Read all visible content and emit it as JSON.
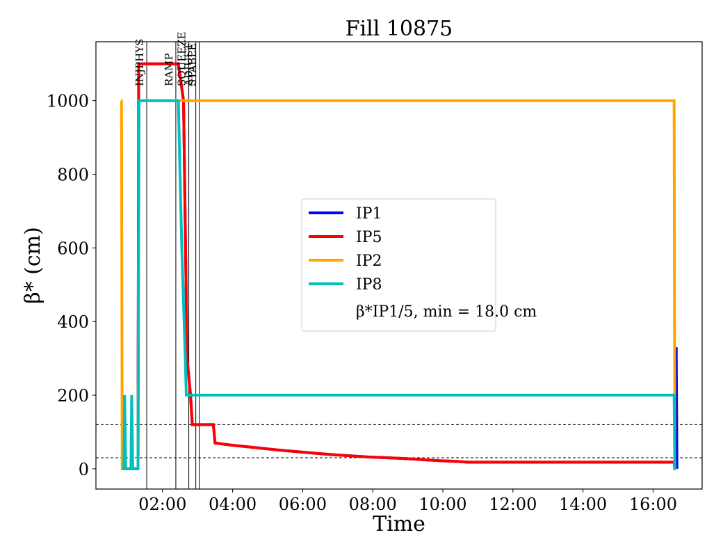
{
  "chart_data": {
    "type": "line",
    "title": "Fill 10875",
    "xlabel": "Time",
    "ylabel": "β* (cm)",
    "x_unit": "hours",
    "xlim": [
      0.1,
      17.4
    ],
    "ylim": [
      -55,
      1160
    ],
    "grid": false,
    "x_ticks": [
      {
        "value": 2,
        "label": "02:00"
      },
      {
        "value": 4,
        "label": "04:00"
      },
      {
        "value": 6,
        "label": "06:00"
      },
      {
        "value": 8,
        "label": "08:00"
      },
      {
        "value": 10,
        "label": "10:00"
      },
      {
        "value": 12,
        "label": "12:00"
      },
      {
        "value": 14,
        "label": "14:00"
      },
      {
        "value": 16,
        "label": "16:00"
      }
    ],
    "y_ticks": [
      0,
      200,
      400,
      600,
      800,
      1000
    ],
    "phase_markers": [
      {
        "label": "INJPHYS",
        "x": 1.55
      },
      {
        "label": "RAMP",
        "x": 2.38
      },
      {
        "label": "SQUEEZE",
        "x": 2.75
      },
      {
        "label": "ADJUST",
        "x": 2.95
      },
      {
        "label": "STABLE",
        "x": 3.05
      }
    ],
    "reference_lines": [
      {
        "y": 120,
        "style": "dashed"
      },
      {
        "y": 30,
        "style": "dashed"
      }
    ],
    "legend": {
      "position": "center",
      "annotation": "β*IP1/5, min = 18.0 cm"
    },
    "series": [
      {
        "name": "IP1",
        "color": "#0000ff",
        "x": [
          0.9,
          1.3,
          1.32,
          2.45,
          2.6,
          2.7,
          2.8,
          2.85,
          3.45,
          3.5,
          3.9,
          4.4,
          4.9,
          5.4,
          5.9,
          6.4,
          6.9,
          7.4,
          7.9,
          8.4,
          8.9,
          9.4,
          9.9,
          10.4,
          10.7,
          12.0,
          14.0,
          16.6,
          16.62,
          16.64,
          16.66,
          16.68
        ],
        "y": [
          0,
          0,
          1100,
          1100,
          1000,
          300,
          200,
          120,
          120,
          70,
          65,
          60,
          55,
          50,
          46,
          42,
          38,
          35,
          32,
          30,
          28,
          25,
          22,
          20,
          18,
          18,
          18,
          18,
          0,
          320,
          330,
          0
        ]
      },
      {
        "name": "IP5",
        "color": "#ff0000",
        "x": [
          0.9,
          1.3,
          1.32,
          2.45,
          2.6,
          2.7,
          2.8,
          2.85,
          3.45,
          3.5,
          3.9,
          4.4,
          4.9,
          5.4,
          5.9,
          6.4,
          6.9,
          7.4,
          7.9,
          8.4,
          8.9,
          9.4,
          9.9,
          10.4,
          10.7,
          12.0,
          14.0,
          16.6,
          16.62,
          16.64
        ],
        "y": [
          0,
          0,
          1100,
          1100,
          1000,
          300,
          200,
          120,
          120,
          70,
          65,
          60,
          55,
          50,
          46,
          42,
          38,
          35,
          32,
          30,
          28,
          25,
          22,
          20,
          18,
          18,
          18,
          18,
          0,
          0
        ]
      },
      {
        "name": "IP2",
        "color": "#ffa500",
        "x": [
          0.82,
          0.83,
          0.85,
          0.9,
          1.3,
          1.33,
          2.45,
          16.55,
          16.6,
          16.62
        ],
        "y": [
          1000,
          1000,
          0,
          0,
          0,
          1000,
          1000,
          1000,
          1000,
          0
        ]
      },
      {
        "name": "IP8",
        "color": "#00bfbf",
        "x": [
          0.85,
          0.9,
          0.92,
          0.95,
          1.1,
          1.12,
          1.15,
          1.3,
          1.33,
          2.45,
          2.55,
          2.65,
          2.68,
          16.6,
          16.62,
          16.64
        ],
        "y": [
          0,
          0,
          200,
          0,
          0,
          200,
          0,
          0,
          1000,
          1000,
          600,
          300,
          200,
          200,
          0,
          0
        ]
      }
    ]
  }
}
